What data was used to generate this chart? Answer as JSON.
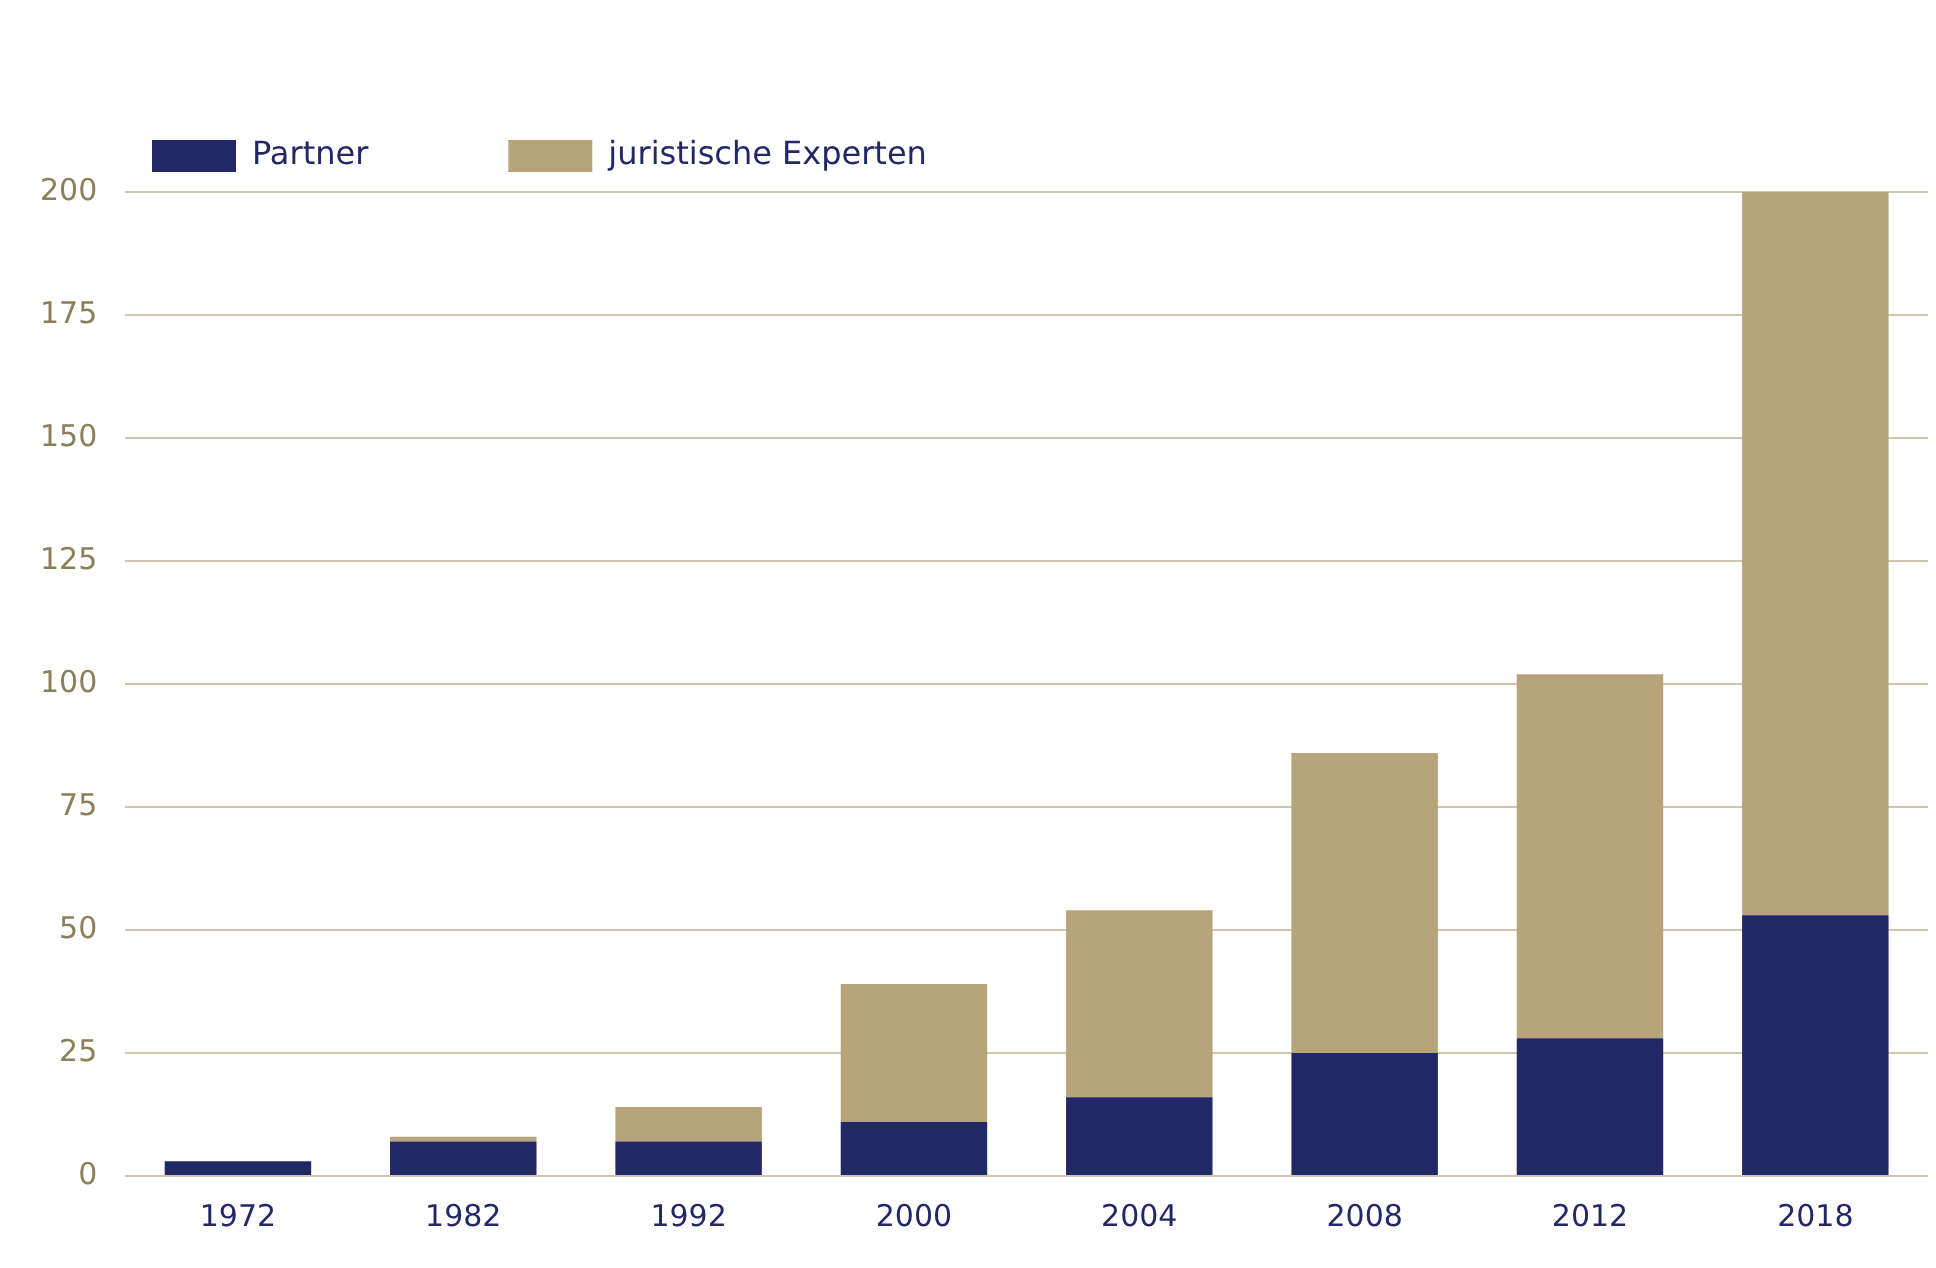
{
  "chart_data": {
    "type": "bar",
    "stacked": true,
    "categories": [
      "1972",
      "1982",
      "1992",
      "2000",
      "2004",
      "2008",
      "2012",
      "2018"
    ],
    "series": [
      {
        "name": "Partner",
        "color": "#222765",
        "values": [
          3,
          7,
          7,
          11,
          16,
          25,
          28,
          53
        ]
      },
      {
        "name": "juristische Experten",
        "color": "#b8a47a",
        "values": [
          0,
          1,
          7,
          28,
          38,
          61,
          74,
          147
        ]
      }
    ],
    "ylim": [
      0,
      200
    ],
    "yticks": [
      0,
      25,
      50,
      75,
      100,
      125,
      150,
      175,
      200
    ],
    "grid": "y",
    "legend": "top left"
  }
}
